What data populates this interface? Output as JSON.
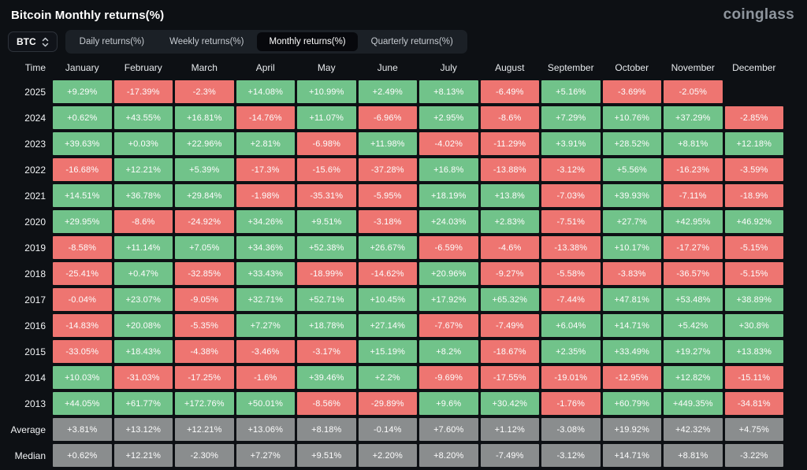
{
  "header": {
    "title": "Bitcoin Monthly returns(%)",
    "brand": "coinglass"
  },
  "controls": {
    "coin_selector": "BTC",
    "tabs": [
      {
        "label": "Daily returns(%)",
        "active": false
      },
      {
        "label": "Weekly returns(%)",
        "active": false
      },
      {
        "label": "Monthly returns(%)",
        "active": true
      },
      {
        "label": "Quarterly returns(%)",
        "active": false
      }
    ]
  },
  "colors": {
    "positive": "#71c38a",
    "negative": "#ee7571",
    "neutral": "#8a8d8e",
    "background": "#0d1014"
  },
  "chart_data": {
    "type": "heatmap",
    "title": "Bitcoin Monthly returns(%)",
    "legend": "green = positive monthly return, red = negative monthly return, gray = summary rows",
    "columns": [
      "Time",
      "January",
      "February",
      "March",
      "April",
      "May",
      "June",
      "July",
      "August",
      "September",
      "October",
      "November",
      "December"
    ],
    "rows": [
      {
        "label": "2025",
        "kind": "year",
        "values": [
          "+9.29%",
          "-17.39%",
          "-2.3%",
          "+14.08%",
          "+10.99%",
          "+2.49%",
          "+8.13%",
          "-6.49%",
          "+5.16%",
          "-3.69%",
          "-2.05%",
          ""
        ]
      },
      {
        "label": "2024",
        "kind": "year",
        "values": [
          "+0.62%",
          "+43.55%",
          "+16.81%",
          "-14.76%",
          "+11.07%",
          "-6.96%",
          "+2.95%",
          "-8.6%",
          "+7.29%",
          "+10.76%",
          "+37.29%",
          "-2.85%"
        ]
      },
      {
        "label": "2023",
        "kind": "year",
        "values": [
          "+39.63%",
          "+0.03%",
          "+22.96%",
          "+2.81%",
          "-6.98%",
          "+11.98%",
          "-4.02%",
          "-11.29%",
          "+3.91%",
          "+28.52%",
          "+8.81%",
          "+12.18%"
        ]
      },
      {
        "label": "2022",
        "kind": "year",
        "values": [
          "-16.68%",
          "+12.21%",
          "+5.39%",
          "-17.3%",
          "-15.6%",
          "-37.28%",
          "+16.8%",
          "-13.88%",
          "-3.12%",
          "+5.56%",
          "-16.23%",
          "-3.59%"
        ]
      },
      {
        "label": "2021",
        "kind": "year",
        "values": [
          "+14.51%",
          "+36.78%",
          "+29.84%",
          "-1.98%",
          "-35.31%",
          "-5.95%",
          "+18.19%",
          "+13.8%",
          "-7.03%",
          "+39.93%",
          "-7.11%",
          "-18.9%"
        ]
      },
      {
        "label": "2020",
        "kind": "year",
        "values": [
          "+29.95%",
          "-8.6%",
          "-24.92%",
          "+34.26%",
          "+9.51%",
          "-3.18%",
          "+24.03%",
          "+2.83%",
          "-7.51%",
          "+27.7%",
          "+42.95%",
          "+46.92%"
        ]
      },
      {
        "label": "2019",
        "kind": "year",
        "values": [
          "-8.58%",
          "+11.14%",
          "+7.05%",
          "+34.36%",
          "+52.38%",
          "+26.67%",
          "-6.59%",
          "-4.6%",
          "-13.38%",
          "+10.17%",
          "-17.27%",
          "-5.15%"
        ]
      },
      {
        "label": "2018",
        "kind": "year",
        "values": [
          "-25.41%",
          "+0.47%",
          "-32.85%",
          "+33.43%",
          "-18.99%",
          "-14.62%",
          "+20.96%",
          "-9.27%",
          "-5.58%",
          "-3.83%",
          "-36.57%",
          "-5.15%"
        ]
      },
      {
        "label": "2017",
        "kind": "year",
        "values": [
          "-0.04%",
          "+23.07%",
          "-9.05%",
          "+32.71%",
          "+52.71%",
          "+10.45%",
          "+17.92%",
          "+65.32%",
          "-7.44%",
          "+47.81%",
          "+53.48%",
          "+38.89%"
        ]
      },
      {
        "label": "2016",
        "kind": "year",
        "values": [
          "-14.83%",
          "+20.08%",
          "-5.35%",
          "+7.27%",
          "+18.78%",
          "+27.14%",
          "-7.67%",
          "-7.49%",
          "+6.04%",
          "+14.71%",
          "+5.42%",
          "+30.8%"
        ]
      },
      {
        "label": "2015",
        "kind": "year",
        "values": [
          "-33.05%",
          "+18.43%",
          "-4.38%",
          "-3.46%",
          "-3.17%",
          "+15.19%",
          "+8.2%",
          "-18.67%",
          "+2.35%",
          "+33.49%",
          "+19.27%",
          "+13.83%"
        ]
      },
      {
        "label": "2014",
        "kind": "year",
        "values": [
          "+10.03%",
          "-31.03%",
          "-17.25%",
          "-1.6%",
          "+39.46%",
          "+2.2%",
          "-9.69%",
          "-17.55%",
          "-19.01%",
          "-12.95%",
          "+12.82%",
          "-15.11%"
        ]
      },
      {
        "label": "2013",
        "kind": "year",
        "values": [
          "+44.05%",
          "+61.77%",
          "+172.76%",
          "+50.01%",
          "-8.56%",
          "-29.89%",
          "+9.6%",
          "+30.42%",
          "-1.76%",
          "+60.79%",
          "+449.35%",
          "-34.81%"
        ]
      },
      {
        "label": "Average",
        "kind": "summary",
        "values": [
          "+3.81%",
          "+13.12%",
          "+12.21%",
          "+13.06%",
          "+8.18%",
          "-0.14%",
          "+7.60%",
          "+1.12%",
          "-3.08%",
          "+19.92%",
          "+42.32%",
          "+4.75%"
        ]
      },
      {
        "label": "Median",
        "kind": "summary",
        "values": [
          "+0.62%",
          "+12.21%",
          "-2.30%",
          "+7.27%",
          "+9.51%",
          "+2.20%",
          "+8.20%",
          "-7.49%",
          "-3.12%",
          "+14.71%",
          "+8.81%",
          "-3.22%"
        ]
      }
    ]
  }
}
